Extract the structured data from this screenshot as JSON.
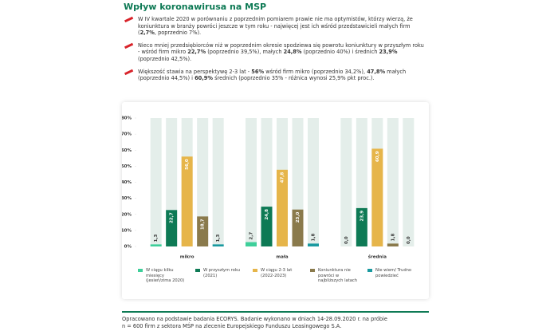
{
  "header": {
    "title": "Wpływ koronawirusa na MSP"
  },
  "bullets": [
    [
      "W IV kwartale 2020 w porównaniu z poprzednim pomiarem prawie nie ma optymistów, którzy wierzą, że koniunktura w branży powróci jeszcze w tym roku - najwięcej jest ich wśród przedstawicieli małych firm (",
      "2,7%",
      ", poprzednio 7%)."
    ],
    [
      "Nieco mniej przedsiębiorców niż w poprzednim okresie spodziewa się powrotu koniunktury w przyszłym roku - wśród firm mikro ",
      "22,7%",
      " (poprzednio 39,5%), małych ",
      "24,8%",
      " (poprzednio 40%) i średnich ",
      "23,9%",
      " (poprzednio 42,5%)."
    ],
    [
      "Większość stawia na perspektywę 2-3 lat - ",
      "56%",
      " wśród firm mikro (poprzednio 34,2%), ",
      "47,8%",
      " małych (poprzednio 44,5%) i ",
      "60,9%",
      " średnich (poprzednio 35% - różnica wynosi 25,9% pkt proc.)."
    ]
  ],
  "chart_data": {
    "type": "bar",
    "categories": [
      "mikro",
      "mała",
      "średnia"
    ],
    "series": [
      {
        "name": "W ciągu kilku miesięcy (jesień/zima 2020)",
        "color": "#3ecf9a",
        "values": [
          1.3,
          2.7,
          0.0
        ],
        "value_labels": [
          "1,3",
          "2,7",
          "0,0"
        ]
      },
      {
        "name": "W przyszłym roku (2021)",
        "color": "#0e7a55",
        "values": [
          22.7,
          24.8,
          23.9
        ],
        "value_labels": [
          "22,7",
          "24,8",
          "23,9"
        ]
      },
      {
        "name": "W ciągu 2-3 lat (2022-2023)",
        "color": "#e6b54a",
        "values": [
          56.0,
          47.8,
          60.9
        ],
        "value_labels": [
          "56,0",
          "47,8",
          "60,9"
        ]
      },
      {
        "name": "Koniunktura nie powróci w najbliższych latach",
        "color": "#8a7a4c",
        "values": [
          18.7,
          23.0,
          1.8
        ],
        "value_labels": [
          "18,7",
          "23,0",
          "1,8"
        ]
      },
      {
        "name": "Nie wiem/ Trudno powiedzieć",
        "color": "#1a9aa0",
        "values": [
          1.3,
          1.8,
          0.0
        ],
        "value_labels": [
          "1,3",
          "1,8",
          "0,0"
        ]
      }
    ],
    "ylim": [
      0,
      80
    ],
    "yticks": [
      {
        "value": 0,
        "label": "0%"
      },
      {
        "value": 10,
        "label": "10%"
      },
      {
        "value": 20,
        "label": "20%"
      },
      {
        "value": 30,
        "label": "30%"
      },
      {
        "value": 40,
        "label": "40%"
      },
      {
        "value": 50,
        "label": "50%"
      },
      {
        "value": 60,
        "label": "60%"
      },
      {
        "value": 70,
        "label": "70%"
      },
      {
        "value": 80,
        "label": "80%"
      }
    ]
  },
  "footer": [
    "Opracowano na podstawie badania ECORYS. Badanie wykonano w dniach 14-28.09.2020 r. na próbie",
    "n = 600 firm z sektora MŚP na zlecenie Europejskiego Funduszu Leasingowego S.A."
  ]
}
